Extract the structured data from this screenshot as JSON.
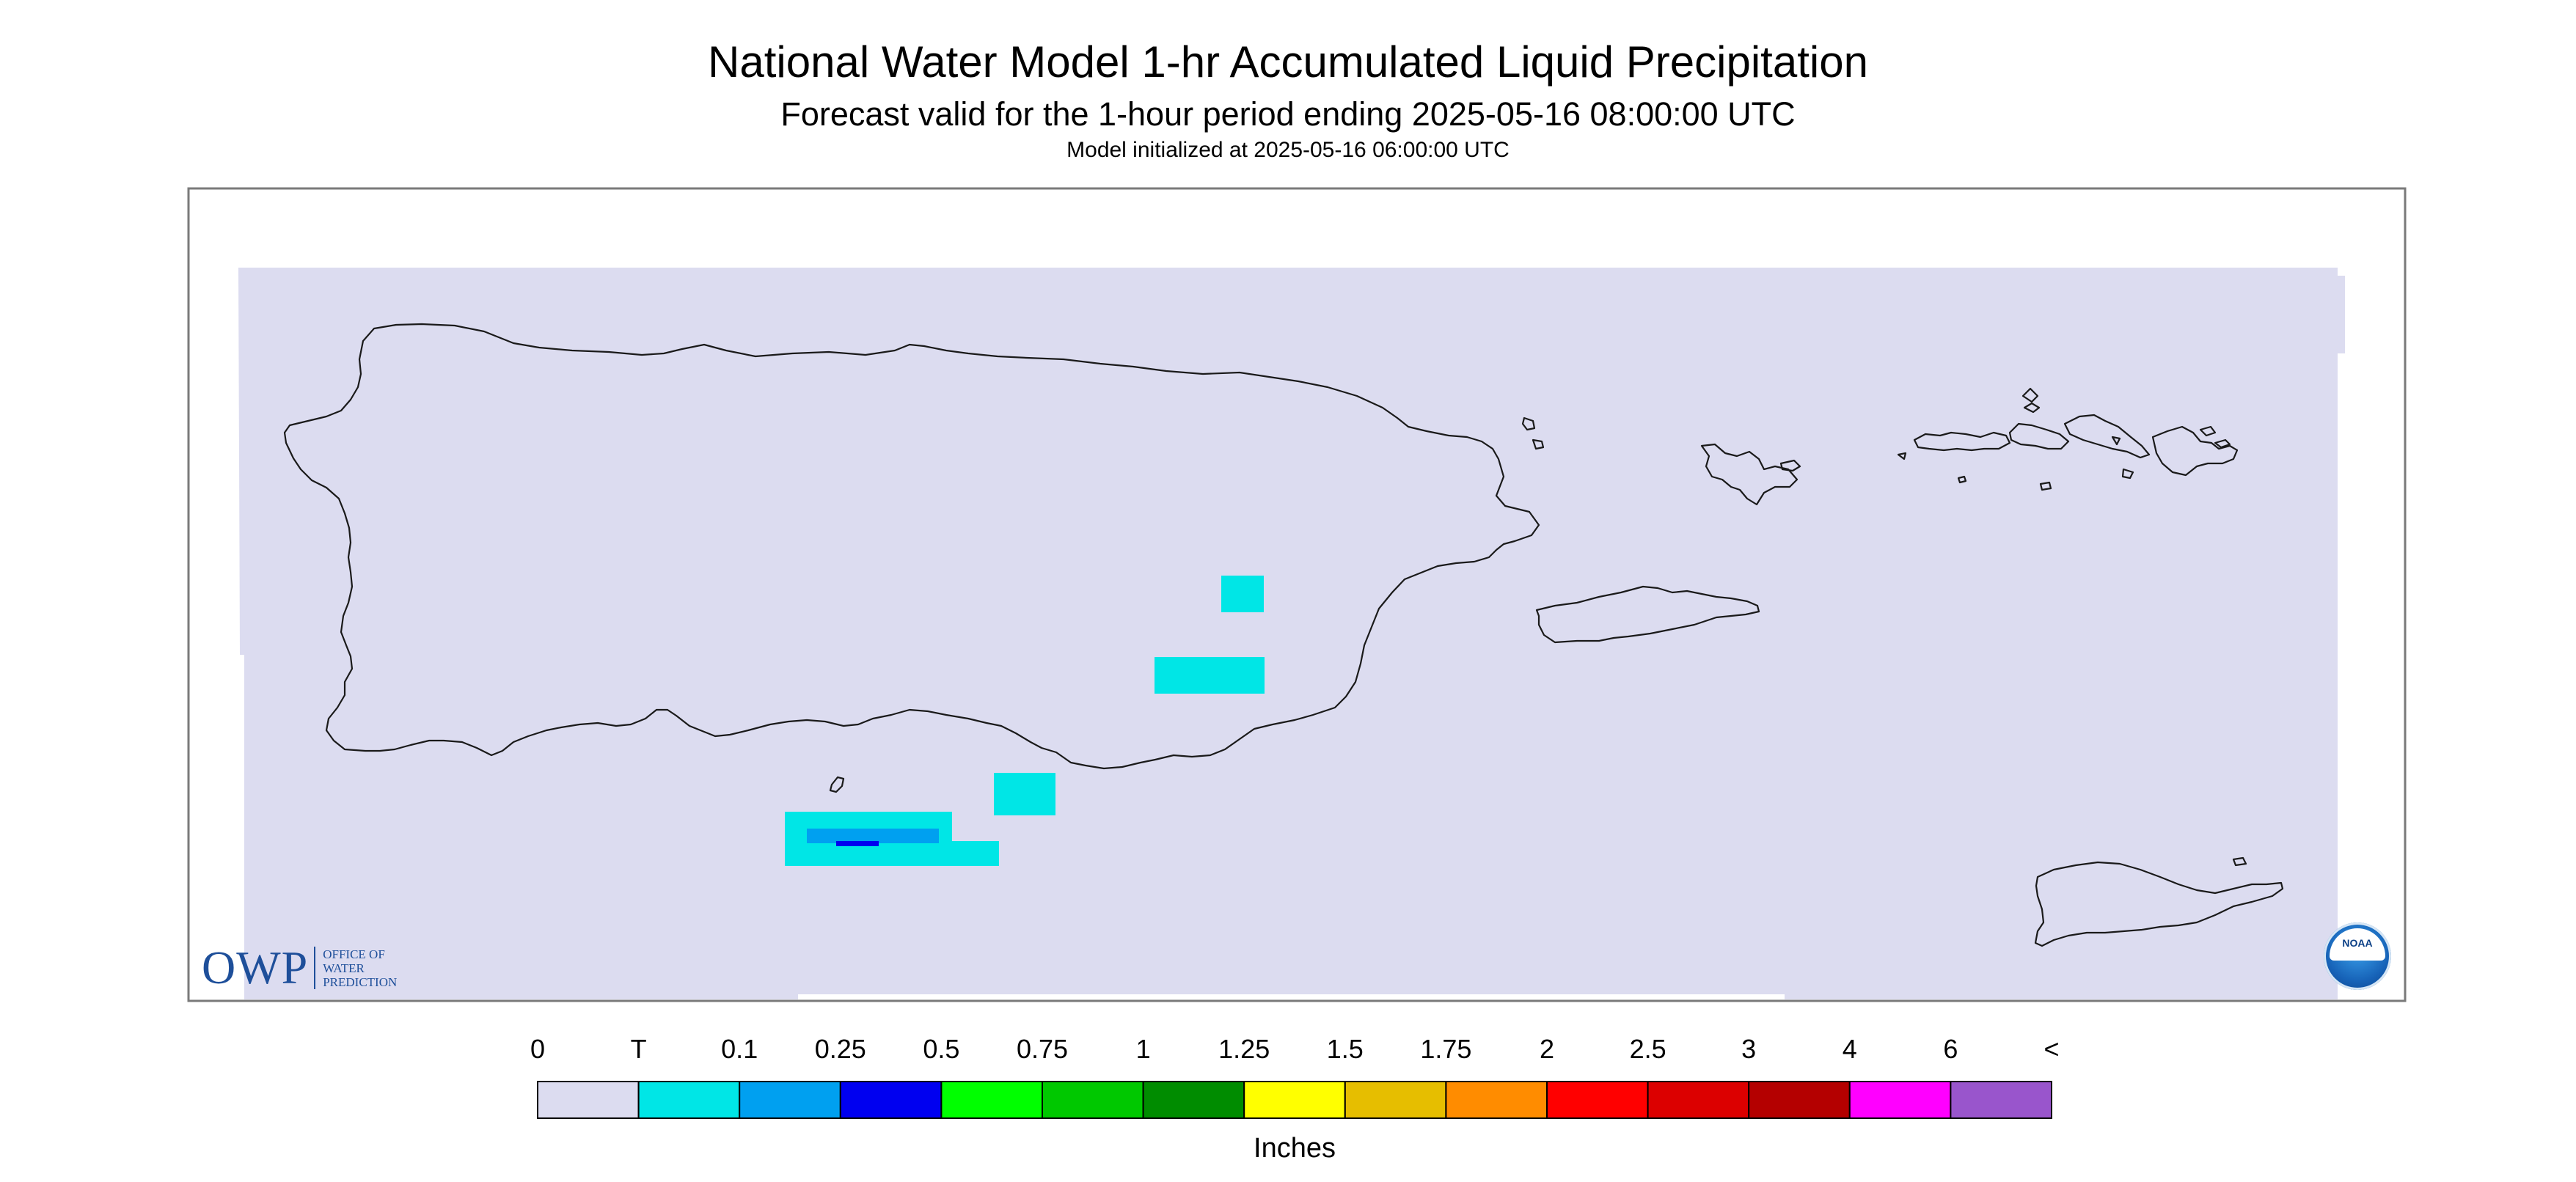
{
  "title": "National Water Model 1-hr Accumulated Liquid Precipitation",
  "subtitle": "Forecast valid for the 1-hour period ending 2025-05-16 08:00:00 UTC",
  "init_line": "Model initialized at 2025-05-16 06:00:00 UTC",
  "legend": {
    "labels": [
      "0",
      "T",
      "0.1",
      "0.25",
      "0.5",
      "0.75",
      "1",
      "1.25",
      "1.5",
      "1.75",
      "2",
      "2.5",
      "3",
      "4",
      "6",
      "<"
    ],
    "colors": [
      "#dcdcf0",
      "#00e6e6",
      "#00a0f0",
      "#0000f0",
      "#00ff00",
      "#00c800",
      "#008c00",
      "#ffff00",
      "#e6be00",
      "#ff8c00",
      "#ff0000",
      "#dc0000",
      "#b40000",
      "#ff00ff",
      "#9955cc"
    ],
    "units": "Inches"
  },
  "map": {
    "background_color": "#dcdcf0",
    "precip_cells": [
      {
        "category": "T",
        "color": "#00e6e6"
      },
      {
        "category": "T",
        "color": "#00e6e6"
      },
      {
        "category": "T",
        "color": "#00e6e6"
      },
      {
        "category": "T",
        "color": "#00e6e6"
      },
      {
        "category": "T",
        "color": "#00e6e6"
      },
      {
        "category": "0.1",
        "color": "#00a0f0"
      },
      {
        "category": "0.25",
        "color": "#0000f0"
      }
    ]
  },
  "logos": {
    "owp_mark": "OWP",
    "owp_lines": [
      "OFFICE OF",
      "WATER",
      "PREDICTION"
    ],
    "noaa": "NOAA"
  }
}
